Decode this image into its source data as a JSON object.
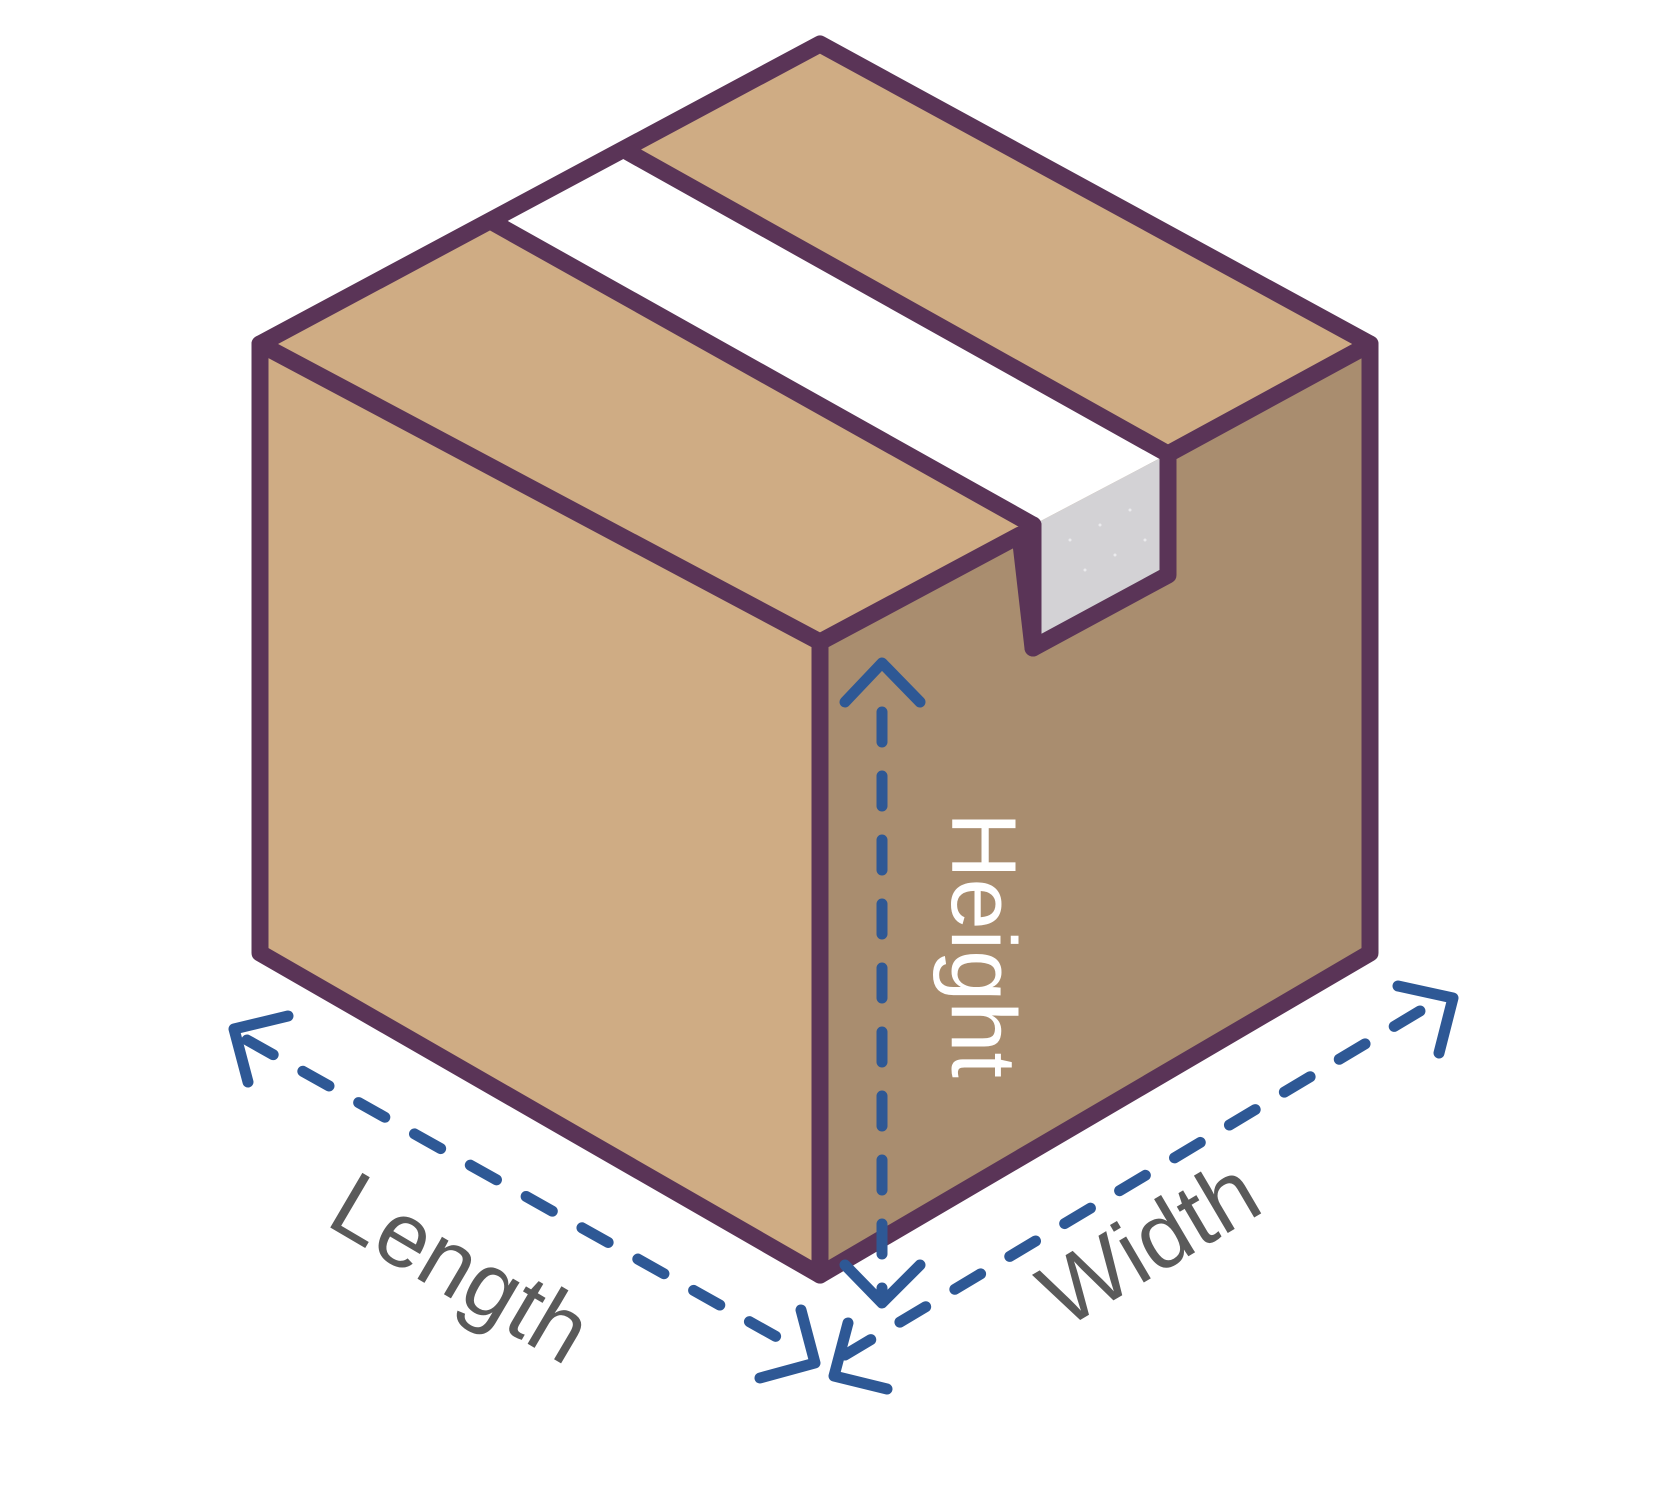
{
  "labels": {
    "length": "Length",
    "width": "Width",
    "height": "Height"
  },
  "colors": {
    "outline": "#5a3457",
    "top_face": "#cfac84",
    "front_face": "#cfac84",
    "side_face": "#a98d6f",
    "tape_top": "#ffffff",
    "tape_side": "#d3d2d5",
    "arrow": "#2e5895",
    "label_dark": "#5a5a5a",
    "label_light": "#ffffff"
  },
  "icons": {
    "box": "cardboard-box-icon",
    "tape": "packing-tape-icon"
  }
}
